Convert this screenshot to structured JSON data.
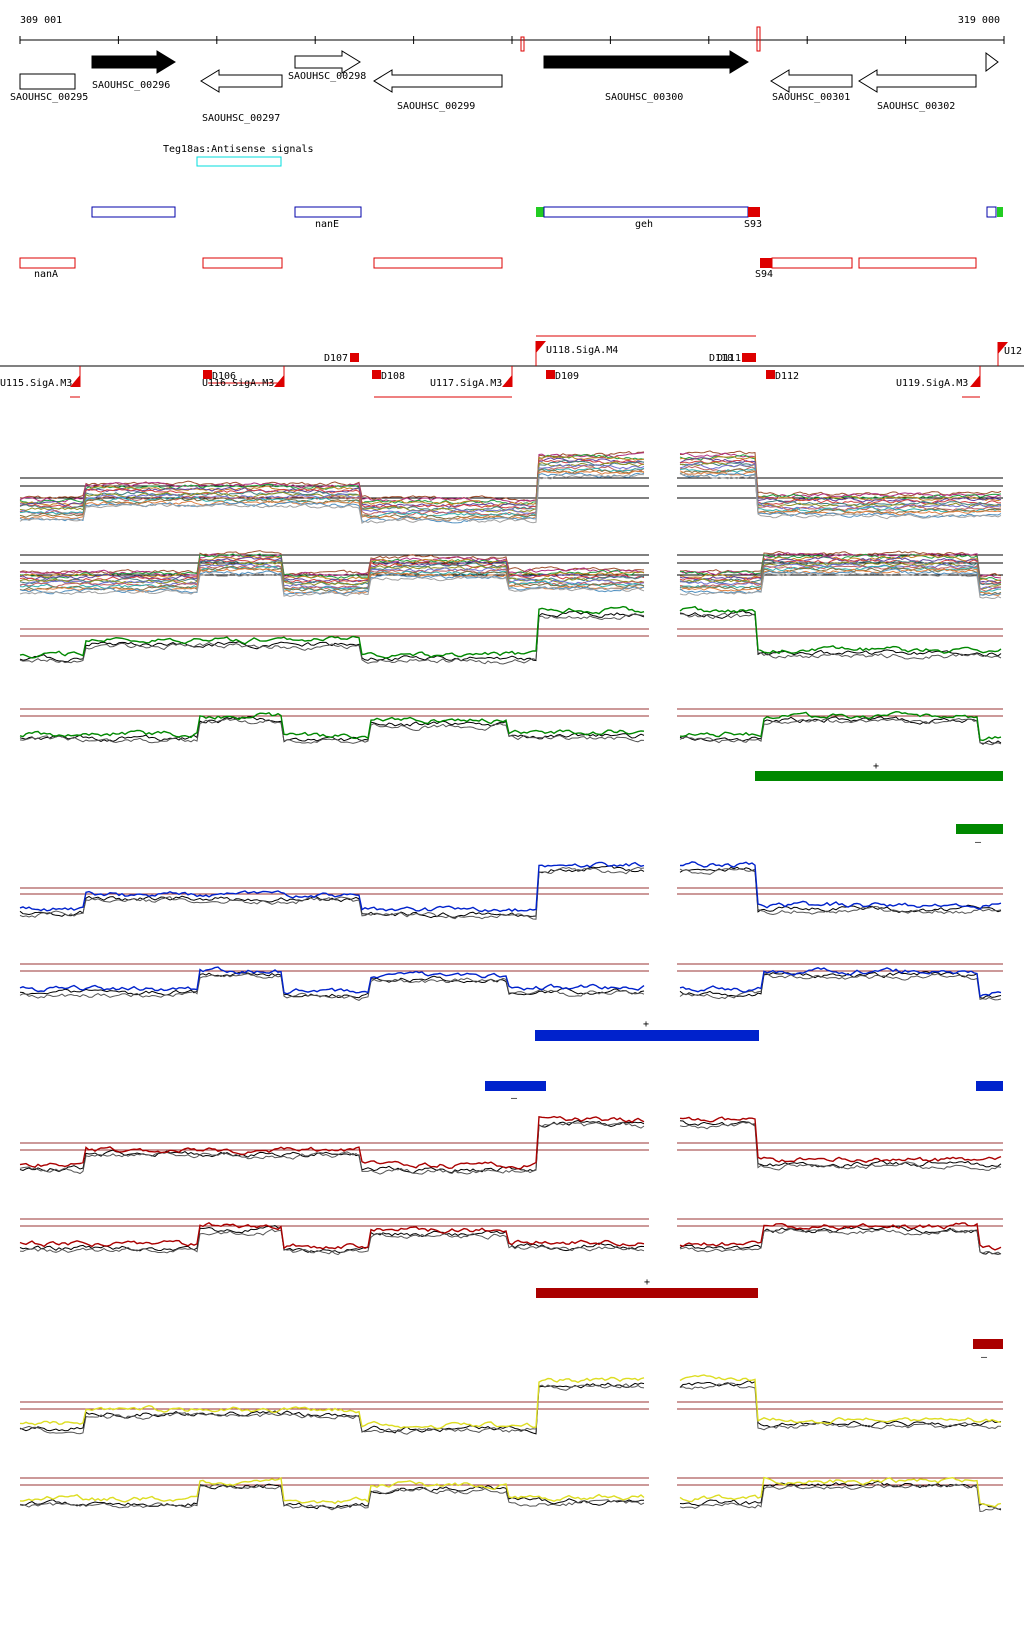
{
  "ruler": {
    "start": "309 001",
    "end": "319 000"
  },
  "genes": [
    {
      "id": "SAOUHSC_00295",
      "strand": "+",
      "filled": false
    },
    {
      "id": "SAOUHSC_00296",
      "strand": "+",
      "filled": true
    },
    {
      "id": "SAOUHSC_00297",
      "strand": "-",
      "filled": false
    },
    {
      "id": "SAOUHSC_00298",
      "strand": "+",
      "filled": false
    },
    {
      "id": "SAOUHSC_00299",
      "strand": "-",
      "filled": false
    },
    {
      "id": "SAOUHSC_00300",
      "strand": "+",
      "filled": true
    },
    {
      "id": "SAOUHSC_00301",
      "strand": "-",
      "filled": false
    },
    {
      "id": "SAOUHSC_00302",
      "strand": "-",
      "filled": false
    }
  ],
  "antisense_label": "Teg18as:Antisense signals",
  "annotation_labels": {
    "nanE": "nanE",
    "geh": "geh",
    "S93": "S93",
    "nanA": "nanA",
    "S94": "S94"
  },
  "promoter_labels": {
    "D107": "D107",
    "U118": "U118.SigA.M4",
    "D110": "D110",
    "D111": "D111",
    "U12": "U12",
    "U115": "U115.SigA.M3",
    "D106": "D106",
    "U116": "U116.SigA.M3",
    "D108": "D108",
    "U117": "U117.SigA.M3",
    "D109": "D109",
    "D112": "D112",
    "U119": "U119.SigA.M3"
  },
  "strand_marks": {
    "plus": "+",
    "minus": "–"
  },
  "colors": {
    "gene_outline": "#000000",
    "antisense": "#00dddd",
    "blue_feature": "#0000aa",
    "red_feature": "#dd0000",
    "green_tick": "#22cc22",
    "green_track": "#008800",
    "blue_track": "#0022cc",
    "red_track": "#aa0000",
    "yellow_track": "#dddd22",
    "threshold": "#993333"
  }
}
